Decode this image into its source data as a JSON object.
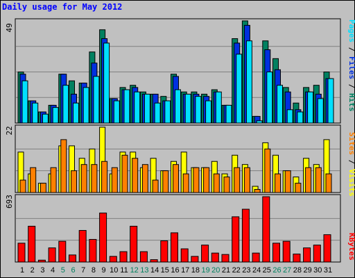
{
  "title": "Daily usage for May 2012",
  "max_labels": {
    "top": "49",
    "middle": "22",
    "bottom": "693"
  },
  "legend_top": [
    {
      "text": "Pages",
      "color": "#00e0ff"
    },
    {
      "text": " / ",
      "color": "#000000"
    },
    {
      "text": "Files",
      "color": "#0030e0"
    },
    {
      "text": " / ",
      "color": "#000000"
    },
    {
      "text": "Hits",
      "color": "#008060"
    }
  ],
  "legend_middle": [
    {
      "text": "Sites",
      "color": "#ff8000"
    },
    {
      "text": " / ",
      "color": "#000000"
    },
    {
      "text": "Visits",
      "color": "#ffff00"
    }
  ],
  "legend_bottom": [
    {
      "text": "KBytes",
      "color": "#ff0000"
    }
  ],
  "colors": {
    "hits": "#008060",
    "files": "#0030e0",
    "pages": "#00e0ff",
    "visits": "#ffff00",
    "sites": "#ff8000",
    "kbytes": "#ff0000",
    "weekday_label": "#000000",
    "weekend_label": "#008060"
  },
  "chart_data": {
    "type": "bar",
    "title": "Daily usage for May 2012",
    "categories": [
      "1",
      "2",
      "3",
      "4",
      "5",
      "6",
      "7",
      "8",
      "9",
      "10",
      "11",
      "12",
      "13",
      "14",
      "15",
      "16",
      "17",
      "18",
      "19",
      "20",
      "21",
      "22",
      "23",
      "24",
      "25",
      "26",
      "27",
      "28",
      "29",
      "30",
      "31"
    ],
    "weekend_days": [
      "5",
      "6",
      "12",
      "13",
      "19",
      "20",
      "26",
      "27"
    ],
    "panels": [
      {
        "name": "top",
        "max_label": "49",
        "series": [
          {
            "name": "Hits",
            "values": [
              23,
              10,
              5,
              8,
              22,
              19,
              18,
              32,
              42,
              11,
              16,
              17,
              14,
              13,
              12,
              22,
              14,
              14,
              13,
              15,
              8,
              38,
              46,
              3,
              37,
              29,
              16,
              9,
              16,
              17,
              23
            ]
          },
          {
            "name": "Files",
            "values": [
              22,
              10,
              5,
              8,
              22,
              13,
              18,
              27,
              38,
              11,
              15,
              16,
              13,
              13,
              10,
              21,
              13,
              13,
              12,
              14,
              8,
              36,
              44,
              3,
              33,
              24,
              14,
              6,
              14,
              13,
              20
            ]
          },
          {
            "name": "Pages",
            "values": [
              19,
              9,
              4,
              7,
              17,
              9,
              16,
              21,
              36,
              10,
              15,
              14,
              13,
              9,
              10,
              15,
              13,
              12,
              10,
              14,
              8,
              31,
              37,
              1,
              23,
              17,
              6,
              5,
              14,
              11,
              20
            ]
          }
        ]
      },
      {
        "name": "middle",
        "max_label": "22",
        "series": [
          {
            "name": "Visits",
            "values": [
              13,
              6,
              3,
              6,
              15,
              15,
              11,
              14,
              21,
              6,
              13,
              13,
              8,
              11,
              7,
              10,
              13,
              8,
              8,
              10,
              6,
              12,
              9,
              2,
              16,
              12,
              7,
              5,
              11,
              9,
              17
            ]
          },
          {
            "name": "Sites",
            "values": [
              4,
              8,
              3,
              8,
              17,
              7,
              9,
              9,
              10,
              8,
              12,
              11,
              9,
              4,
              7,
              9,
              6,
              8,
              8,
              6,
              5,
              8,
              8,
              1,
              14,
              6,
              7,
              3,
              8,
              8,
              6
            ]
          }
        ]
      },
      {
        "name": "bottom",
        "max_label": "693",
        "series": [
          {
            "name": "KBytes",
            "values": [
              200,
              380,
              20,
              150,
              220,
              75,
              335,
              240,
              520,
              60,
              110,
              380,
              110,
              25,
              225,
              310,
              140,
              60,
              180,
              95,
              80,
              480,
              560,
              95,
              693,
              200,
              220,
              85,
              150,
              180,
              290
            ]
          }
        ]
      }
    ]
  }
}
